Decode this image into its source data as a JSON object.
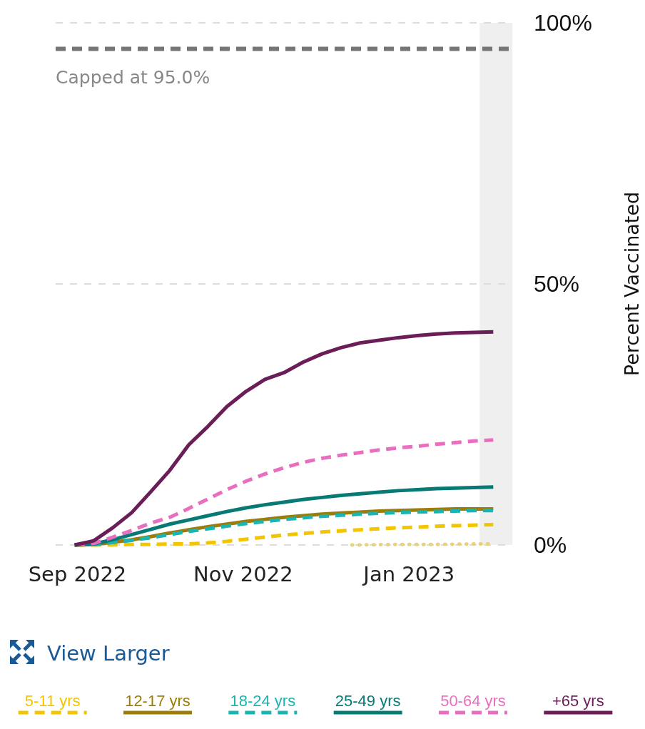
{
  "chart_data": {
    "type": "line",
    "ylabel": "Percent Vaccinated",
    "x": [
      "2022-08-31",
      "2022-09-07",
      "2022-09-14",
      "2022-09-21",
      "2022-09-28",
      "2022-10-05",
      "2022-10-12",
      "2022-10-19",
      "2022-10-26",
      "2022-11-02",
      "2022-11-09",
      "2022-11-16",
      "2022-11-23",
      "2022-11-30",
      "2022-12-07",
      "2022-12-14",
      "2022-12-21",
      "2022-12-28",
      "2023-01-04",
      "2023-01-11",
      "2023-01-18",
      "2023-01-25",
      "2023-02-01"
    ],
    "series": [
      {
        "name": "5-11 yrs",
        "color": "#f2c500",
        "line_style": "dashed",
        "values": [
          0,
          0,
          0,
          0.1,
          0.1,
          0.2,
          0.2,
          0.4,
          0.7,
          1.1,
          1.5,
          1.9,
          2.2,
          2.5,
          2.7,
          2.9,
          3.1,
          3.3,
          3.4,
          3.6,
          3.7,
          3.8,
          3.9
        ]
      },
      {
        "name": "12-17 yrs",
        "color": "#9a7d0a",
        "line_style": "solid",
        "values": [
          0,
          0.1,
          0.5,
          1.0,
          1.6,
          2.3,
          2.9,
          3.5,
          4.0,
          4.5,
          4.9,
          5.3,
          5.6,
          5.9,
          6.1,
          6.3,
          6.5,
          6.6,
          6.7,
          6.8,
          6.9,
          6.9,
          6.9
        ]
      },
      {
        "name": "18-24 yrs",
        "color": "#1ab5b2",
        "line_style": "dashed",
        "values": [
          0,
          0.1,
          0.5,
          0.9,
          1.4,
          2.0,
          2.6,
          3.1,
          3.6,
          4.1,
          4.5,
          4.9,
          5.2,
          5.5,
          5.7,
          5.9,
          6.1,
          6.2,
          6.3,
          6.4,
          6.5,
          6.6,
          6.6
        ]
      },
      {
        "name": "25-49 yrs",
        "color": "#087a75",
        "line_style": "solid",
        "values": [
          0,
          0.2,
          1.0,
          2.0,
          3.0,
          4.0,
          4.8,
          5.6,
          6.4,
          7.1,
          7.7,
          8.2,
          8.7,
          9.1,
          9.5,
          9.8,
          10.1,
          10.4,
          10.6,
          10.8,
          10.9,
          11.0,
          11.1
        ]
      },
      {
        "name": "50-64 yrs",
        "color": "#e86fbf",
        "line_style": "dashed",
        "values": [
          0,
          0.3,
          1.5,
          2.8,
          4.2,
          5.3,
          7.0,
          8.8,
          10.6,
          12.2,
          13.6,
          14.8,
          15.8,
          16.6,
          17.2,
          17.7,
          18.2,
          18.6,
          18.9,
          19.3,
          19.6,
          19.9,
          20.1
        ]
      },
      {
        "name": "+65 yrs",
        "color": "#6b1d57",
        "line_style": "solid",
        "values": [
          0,
          0.8,
          3.3,
          6.2,
          10.2,
          14.3,
          19.2,
          22.7,
          26.5,
          29.4,
          31.7,
          33.0,
          35.0,
          36.6,
          37.8,
          38.7,
          39.2,
          39.7,
          40.1,
          40.4,
          40.6,
          40.7,
          40.8
        ]
      },
      {
        "color": "#e8d27a",
        "line_style": "dotted",
        "x": [
          "2022-12-11",
          "2022-12-28",
          "2023-01-11",
          "2023-01-25",
          "2023-02-01"
        ],
        "values": [
          0,
          0.1,
          0.1,
          0.2,
          0.2
        ]
      }
    ],
    "xlim": [
      "2022-08-24",
      "2023-02-08"
    ],
    "xticks": [
      {
        "value": "2022-09-01",
        "label": "Sep 2022"
      },
      {
        "value": "2022-11-01",
        "label": "Nov 2022"
      },
      {
        "value": "2023-01-01",
        "label": "Jan 2023"
      }
    ],
    "ylim": [
      0,
      100
    ],
    "yticks": [
      {
        "value": 0,
        "label": "0%"
      },
      {
        "value": 50,
        "label": "50%"
      },
      {
        "value": 100,
        "label": "100%"
      }
    ],
    "grid": "y",
    "legend": "bottom",
    "marker": "none",
    "ref_lines": [
      {
        "axis": "y",
        "value": 95,
        "label": "Capped at 95.0%",
        "color": "#757575",
        "line_style": "dashed"
      }
    ],
    "bands": [
      {
        "axis": "x",
        "from": "2023-01-27",
        "to": "2023-02-08",
        "color": "#efefef"
      }
    ],
    "annotations": [
      "View Larger"
    ]
  }
}
